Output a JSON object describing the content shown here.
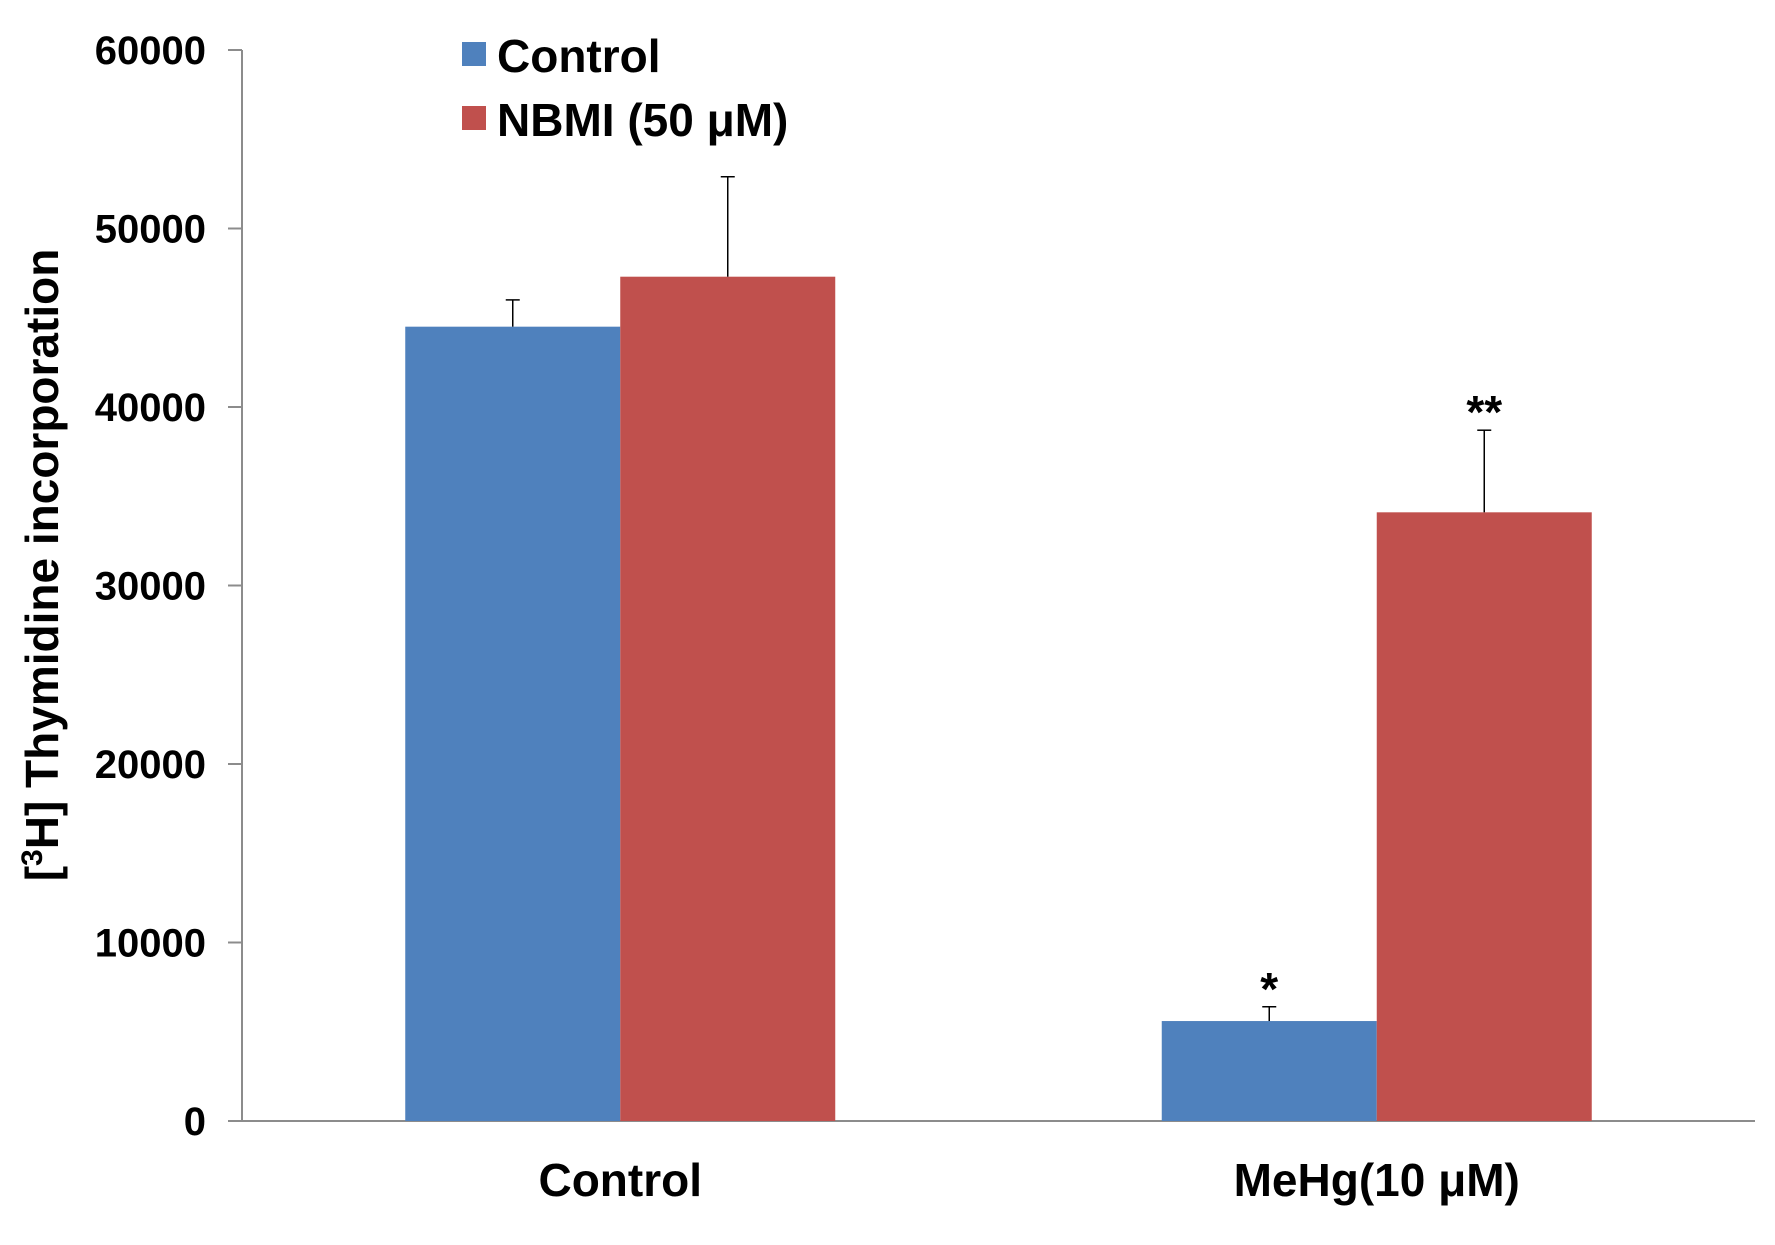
{
  "chart_data": {
    "type": "bar",
    "title": "",
    "xlabel": "",
    "ylabel_prefix": "[",
    "ylabel_sup": "3",
    "ylabel_suffix": "H] Thymidine incorporation",
    "ylim": [
      0,
      60000
    ],
    "yticks": [
      0,
      10000,
      20000,
      30000,
      40000,
      50000,
      60000
    ],
    "ytick_labels": [
      "0",
      "10000",
      "20000",
      "30000",
      "40000",
      "50000",
      "60000"
    ],
    "categories": [
      "Control",
      "MeHg(10 μM)"
    ],
    "series": [
      {
        "name": "Control",
        "color": "#4f81bd",
        "values": [
          44500,
          5600
        ],
        "errors": [
          1500,
          800
        ],
        "significance": [
          "",
          "*"
        ]
      },
      {
        "name": "NBMI (50 μM)",
        "color": "#c0504d",
        "values": [
          47300,
          34100
        ],
        "errors": [
          5600,
          4600
        ],
        "significance": [
          "",
          "**"
        ]
      }
    ],
    "grid": false,
    "legend_position": "top-left"
  }
}
